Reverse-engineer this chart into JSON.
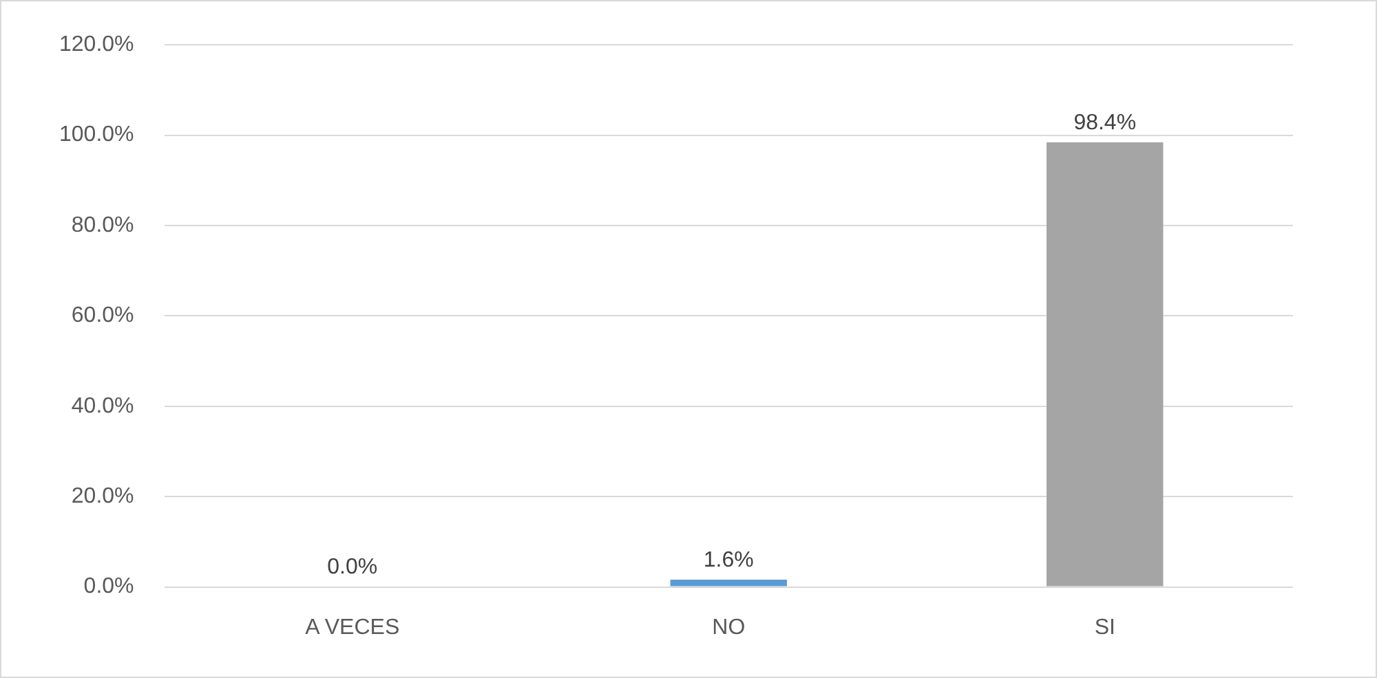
{
  "chart_data": {
    "type": "bar",
    "categories": [
      "A VECES",
      "NO",
      "SI"
    ],
    "values": [
      0,
      1.6,
      98.4
    ],
    "colors": [
      "#5b9bd5",
      "#5b9bd5",
      "#a5a5a5"
    ],
    "value_labels": [
      "0.0%",
      "1.6%",
      "98.4%"
    ],
    "ylim": [
      0,
      120
    ],
    "yticks": [
      {
        "value": 0,
        "label": "0.0%"
      },
      {
        "value": 20,
        "label": "20.0%"
      },
      {
        "value": 40,
        "label": "40.0%"
      },
      {
        "value": 60,
        "label": "60.0%"
      },
      {
        "value": 80,
        "label": "80.0%"
      },
      {
        "value": 100,
        "label": "100.0%"
      },
      {
        "value": 120,
        "label": "120.0%"
      }
    ],
    "grid": "y"
  }
}
